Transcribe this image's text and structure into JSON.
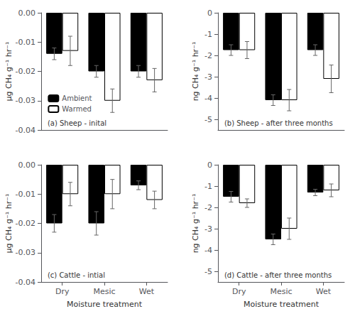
{
  "chart_data": [
    {
      "type": "bar",
      "title": "(a) Sheep - inital",
      "ylabel": "μg CH₄ g⁻¹ hr⁻¹",
      "categories": [
        null,
        null,
        null
      ],
      "series": [
        {
          "name": "Ambient",
          "color": "#000000",
          "values": [
            -0.014,
            -0.02,
            -0.02
          ],
          "errors": [
            0.002,
            0.002,
            0.002
          ]
        },
        {
          "name": "Warmed",
          "color": "#ffffff",
          "values": [
            -0.013,
            -0.03,
            -0.023
          ],
          "errors": [
            0.005,
            0.004,
            0.004
          ]
        }
      ],
      "ylim": [
        -0.04,
        0.0
      ],
      "yticks": [
        {
          "value": 0,
          "label": "0.00"
        },
        -0.01,
        -0.02,
        -0.03,
        -0.04
      ],
      "grid": false,
      "legend": "lower left"
    },
    {
      "type": "bar",
      "title": "(b) Sheep - after three months",
      "ylabel": "ng CH₄ g⁻¹ hr⁻¹",
      "categories": [
        null,
        null,
        null
      ],
      "series": [
        {
          "name": "Ambient",
          "color": "#000000",
          "values": [
            -1.75,
            -4.1,
            -1.75
          ],
          "errors": [
            0.25,
            0.25,
            0.25
          ]
        },
        {
          "name": "Warmed",
          "color": "#ffffff",
          "values": [
            -1.75,
            -4.1,
            -3.1
          ],
          "errors": [
            0.4,
            0.5,
            0.65
          ]
        }
      ],
      "ylim": [
        -5.5,
        0.0
      ],
      "yticks": [
        0,
        -1,
        -2,
        -3,
        -4,
        -5
      ],
      "grid": false
    },
    {
      "type": "bar",
      "title": "(c) Cattle - intial",
      "ylabel": "μg CH₄ g⁻¹ hr⁻¹",
      "xlabel": "Moisture treatment",
      "categories": [
        "Dry",
        "Mesic",
        "Wet"
      ],
      "series": [
        {
          "name": "Ambient",
          "color": "#000000",
          "values": [
            -0.02,
            -0.02,
            -0.007
          ],
          "errors": [
            0.003,
            0.004,
            0.0015
          ]
        },
        {
          "name": "Warmed",
          "color": "#ffffff",
          "values": [
            -0.01,
            -0.01,
            -0.012
          ],
          "errors": [
            0.004,
            0.005,
            0.003
          ]
        }
      ],
      "ylim": [
        -0.04,
        0.0
      ],
      "yticks": [
        {
          "value": 0,
          "label": "0.00"
        },
        -0.01,
        -0.02,
        -0.03,
        -0.04
      ],
      "grid": false
    },
    {
      "type": "bar",
      "title": "(d) Cattle - after three months",
      "ylabel": "ng CH₄ g⁻¹ hr⁻¹",
      "xlabel": "Moisture treatment",
      "categories": [
        "Dry",
        "Mesic",
        "Wet"
      ],
      "series": [
        {
          "name": "Ambient",
          "color": "#000000",
          "values": [
            -1.5,
            -3.5,
            -1.3
          ],
          "errors": [
            0.25,
            0.25,
            0.15
          ]
        },
        {
          "name": "Warmed",
          "color": "#ffffff",
          "values": [
            -1.8,
            -3.0,
            -1.2
          ],
          "errors": [
            0.2,
            0.5,
            0.3
          ]
        }
      ],
      "ylim": [
        -5.5,
        0.0
      ],
      "yticks": [
        0,
        -1,
        -2,
        -3,
        -4,
        -5
      ],
      "grid": false
    }
  ]
}
